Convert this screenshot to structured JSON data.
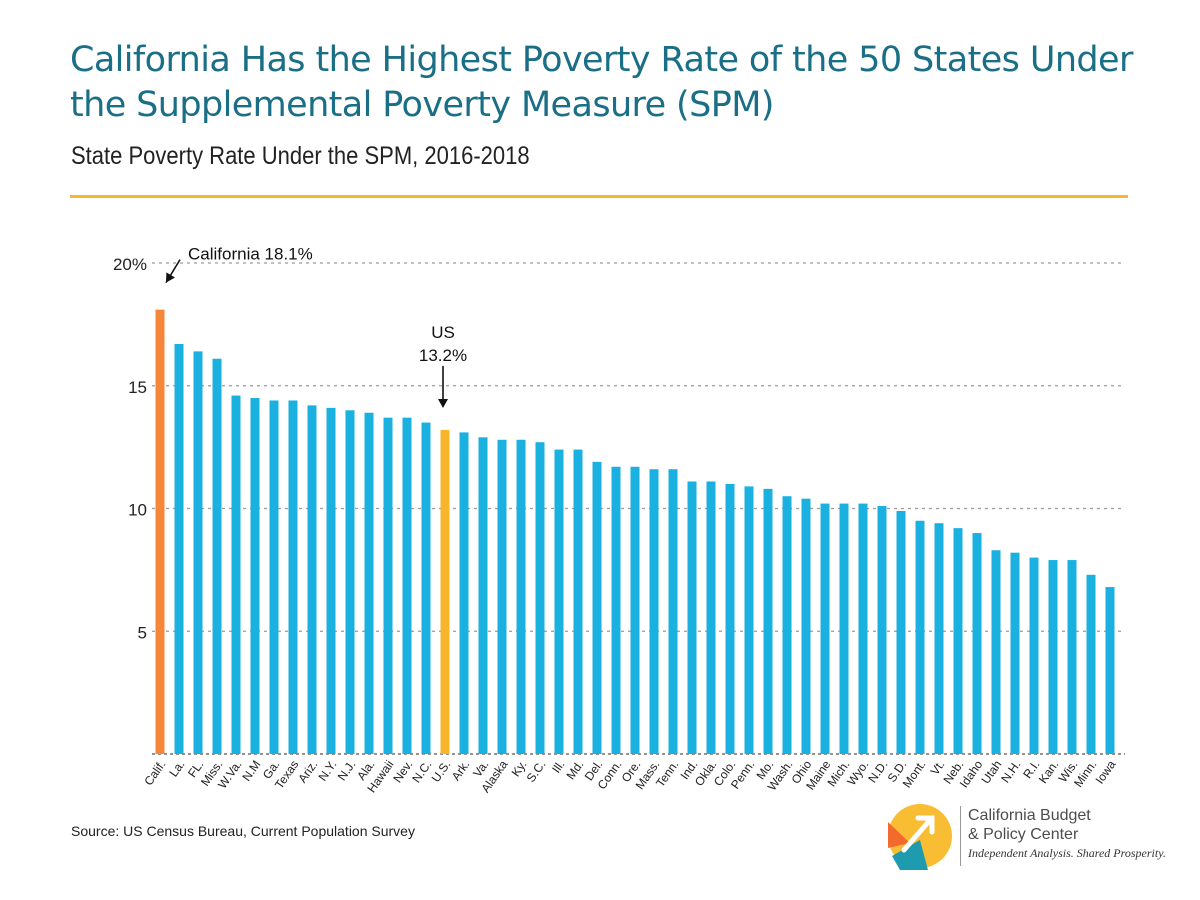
{
  "title": "California Has the Highest Poverty Rate of the 50 States Under the Supplemental Poverty Measure (SPM)",
  "subtitle": "State Poverty Rate Under the SPM, 2016-2018",
  "source": "Source: US Census Bureau, Current Population Survey",
  "logo": {
    "line1": "California Budget",
    "line2": "& Policy Center",
    "tagline": "Independent Analysis. Shared Prosperity."
  },
  "colors": {
    "title": "#1a6f87",
    "rule": "#f5b82e",
    "bar_default": "#1ab0df",
    "bar_california": "#f5863a",
    "bar_us": "#f7b52c",
    "logo_orange": "#f26a2e",
    "logo_yellow": "#f9bd33",
    "logo_teal": "#1f9bb0"
  },
  "chart_data": {
    "type": "bar",
    "categories": [
      "Calif.",
      "La.",
      "FL.",
      "Miss.",
      "W.Va.",
      "N.M",
      "Ga.",
      "Texas",
      "Ariz.",
      "N.Y.",
      "N.J.",
      "Ala.",
      "Hawaii",
      "Nev.",
      "N.C.",
      "U.S.",
      "Ark.",
      "Va.",
      "Alaska",
      "Ky.",
      "S.C.",
      "Ill.",
      "Md.",
      "Del.",
      "Conn.",
      "Ore.",
      "Mass.",
      "Tenn.",
      "Ind.",
      "Okla.",
      "Colo.",
      "Penn.",
      "Mo.",
      "Wash.",
      "Ohio",
      "Maine",
      "Mich.",
      "Wyo.",
      "N.D.",
      "S.D.",
      "Mont.",
      "Vt.",
      "Neb.",
      "Idaho",
      "Utah",
      "N.H.",
      "R.I.",
      "Kan.",
      "Wis.",
      "Minn.",
      "Iowa"
    ],
    "values": [
      18.1,
      16.7,
      16.4,
      16.1,
      14.6,
      14.5,
      14.4,
      14.4,
      14.2,
      14.1,
      14.0,
      13.9,
      13.7,
      13.7,
      13.5,
      13.2,
      13.1,
      12.9,
      12.8,
      12.8,
      12.7,
      12.4,
      12.4,
      11.9,
      11.7,
      11.7,
      11.6,
      11.6,
      11.1,
      11.1,
      11.0,
      10.9,
      10.8,
      10.5,
      10.4,
      10.2,
      10.2,
      10.2,
      10.1,
      9.9,
      9.5,
      9.4,
      9.2,
      9.0,
      8.3,
      8.2,
      8.0,
      7.9,
      7.9,
      7.3,
      6.8
    ],
    "highlight": {
      "Calif.": "#f5863a",
      "U.S.": "#f7b52c"
    },
    "ylim": [
      0,
      20
    ],
    "yticks": [
      "5",
      "10",
      "15",
      "20%"
    ],
    "grid": true,
    "annotations": [
      {
        "target": "Calif.",
        "label": "California 18.1%"
      },
      {
        "target": "U.S.",
        "label_lines": [
          "US",
          "13.2%"
        ]
      }
    ]
  }
}
